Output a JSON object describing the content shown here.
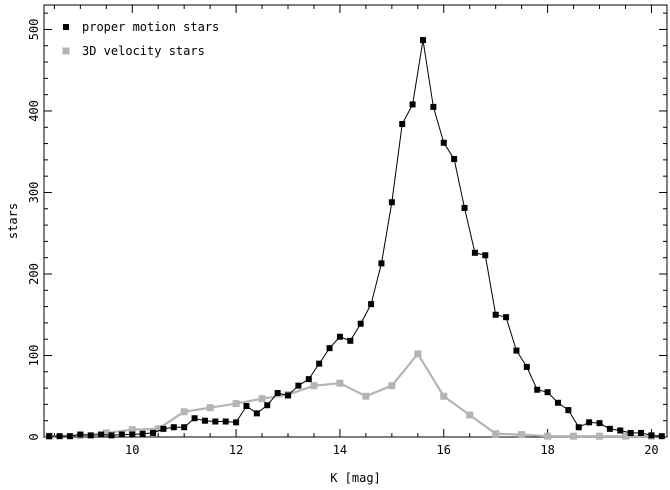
{
  "chart_data": {
    "type": "line",
    "title": "",
    "xlabel": "K [mag]",
    "ylabel": "stars",
    "xlim": [
      8.3,
      20.3
    ],
    "ylim": [
      0,
      530
    ],
    "x_ticks": [
      10,
      12,
      14,
      16,
      18,
      20
    ],
    "y_ticks": [
      0,
      100,
      200,
      300,
      400,
      500
    ],
    "legend_position": "top-left",
    "grid": false,
    "series": [
      {
        "name": "proper motion stars",
        "color": "#000000",
        "marker": "square",
        "x": [
          8.4,
          8.6,
          8.8,
          9.0,
          9.2,
          9.4,
          9.6,
          9.8,
          10.0,
          10.2,
          10.4,
          10.6,
          10.8,
          11.0,
          11.2,
          11.4,
          11.6,
          11.8,
          12.0,
          12.2,
          12.4,
          12.6,
          12.8,
          13.0,
          13.2,
          13.4,
          13.6,
          13.8,
          14.0,
          14.2,
          14.4,
          14.6,
          14.8,
          15.0,
          15.2,
          15.4,
          15.6,
          15.8,
          16.0,
          16.2,
          16.4,
          16.6,
          16.8,
          17.0,
          17.2,
          17.4,
          17.6,
          17.8,
          18.0,
          18.2,
          18.4,
          18.6,
          18.8,
          19.0,
          19.2,
          19.4,
          19.6,
          19.8,
          20.0,
          20.2
        ],
        "y": [
          1,
          1,
          1,
          3,
          2,
          3,
          2,
          3,
          3,
          4,
          5,
          10,
          12,
          12,
          23,
          20,
          19,
          19,
          18,
          38,
          29,
          39,
          54,
          51,
          63,
          71,
          90,
          109,
          123,
          118,
          139,
          163,
          213,
          288,
          384,
          408,
          487,
          405,
          361,
          341,
          281,
          226,
          223,
          150,
          147,
          106,
          86,
          58,
          55,
          42,
          33,
          12,
          18,
          17,
          10,
          8,
          5,
          5,
          2,
          1
        ]
      },
      {
        "name": "3D velocity stars",
        "color": "#b4b4b4",
        "marker": "square",
        "x": [
          8.4,
          9.0,
          9.5,
          10.0,
          10.5,
          11.0,
          11.5,
          12.0,
          12.5,
          13.0,
          13.5,
          14.0,
          14.5,
          15.0,
          15.5,
          16.0,
          16.5,
          17.0,
          17.5,
          18.0,
          18.5,
          19.0,
          19.5,
          20.0
        ],
        "y": [
          1,
          2,
          5,
          9,
          10,
          31,
          36,
          41,
          47,
          52,
          63,
          66,
          50,
          63,
          102,
          50,
          27,
          4,
          3,
          1,
          1,
          1,
          1,
          1
        ]
      }
    ]
  }
}
